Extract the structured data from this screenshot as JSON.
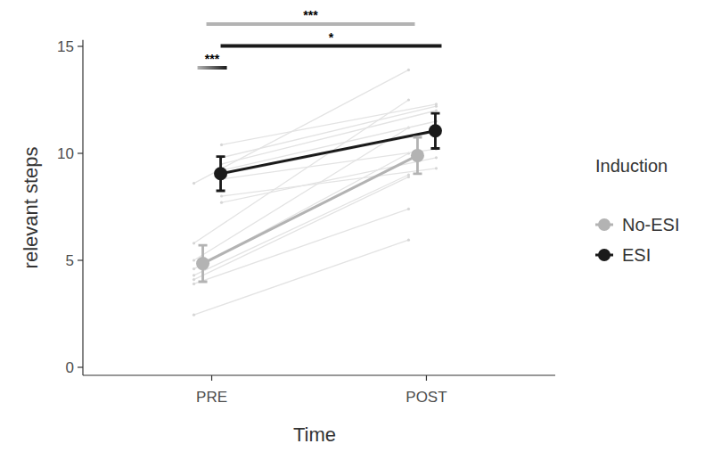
{
  "chart_data": {
    "type": "line",
    "x_label": "Time",
    "y_label": "relevant steps",
    "categories": [
      "PRE",
      "POST"
    ],
    "ylim": [
      -0.375,
      15.3
    ],
    "yticks": [
      0,
      5,
      10,
      15
    ],
    "legend": "right",
    "legend_title": "Induction",
    "marker": "circle",
    "series": [
      {
        "name": "No-ESI",
        "color": "#b3b3b3",
        "values": [
          4.85,
          9.9
        ],
        "errors": [
          0.85,
          0.85
        ],
        "subjects": [
          [
            2.45,
            5.95
          ],
          [
            3.9,
            7.4
          ],
          [
            4.1,
            8.9
          ],
          [
            4.3,
            9.0
          ],
          [
            4.6,
            10.0
          ],
          [
            5.0,
            11.2
          ],
          [
            5.8,
            12.5
          ],
          [
            8.6,
            13.9
          ]
        ]
      },
      {
        "name": "ESI",
        "color": "#1a1a1a",
        "values": [
          9.05,
          11.05
        ],
        "errors": [
          0.8,
          0.82
        ],
        "subjects": [
          [
            10.4,
            12.3
          ],
          [
            9.8,
            12.2
          ],
          [
            9.5,
            12.0
          ],
          [
            9.2,
            11.5
          ],
          [
            9.0,
            11.0
          ],
          [
            8.8,
            10.2
          ],
          [
            7.7,
            9.8
          ],
          [
            8.0,
            9.3
          ]
        ]
      }
    ],
    "annotations": [
      {
        "text": "***",
        "from": [
          0,
          0
        ],
        "to": [
          0,
          1
        ]
      },
      {
        "text": "*",
        "from": [
          1,
          0
        ],
        "to": [
          1,
          1
        ]
      },
      {
        "text": "***",
        "from": [
          0,
          0
        ],
        "to": [
          1,
          0
        ]
      }
    ]
  }
}
